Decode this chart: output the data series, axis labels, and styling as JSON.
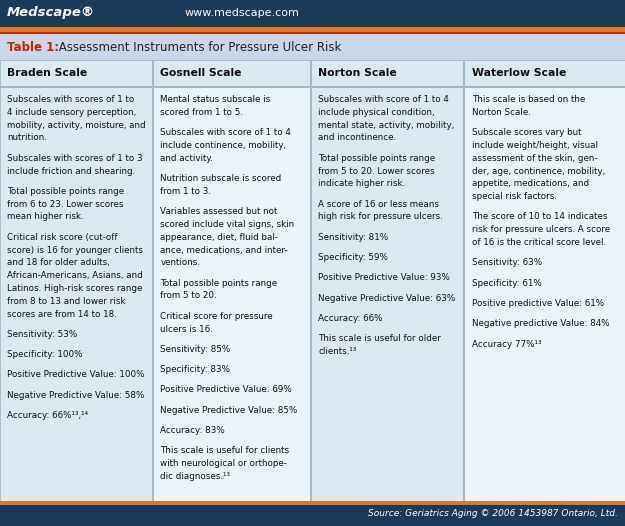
{
  "header_bg": "#1a3a5c",
  "header_orange_line": "#e07820",
  "header_text_medscape": "Medscape®",
  "header_text_url": "www.medscape.com",
  "table_title_bg": "#c8d8e8",
  "table_title_bold": "Table 1:",
  "table_title_rest": " Assessment Instruments for Pressure Ulcer Risk",
  "col_header_bg": "#dce8f0",
  "col_headers": [
    "Braden Scale",
    "Gosnell Scale",
    "Norton Scale",
    "Waterlow Scale"
  ],
  "cell_bg_even": "#dce8f0",
  "cell_bg_odd": "#eaf3f8",
  "footer_bg": "#1a3a5c",
  "footer_text": "Source: Geriatrics Aging © 2006 1453987 Ontario, Ltd.",
  "red_line": "#cc2200",
  "col1_lines": [
    "Subscales with scores of 1 to\n4 include sensory perception,\nmobility, activity, moisture, and\nnutrition.",
    "Subscales with scores of 1 to 3\ninclude friction and shearing.",
    "Total possible points range\nfrom 6 to 23. Lower scores\nmean higher risk.",
    "Critical risk score (cut-off\nscore) is 16 for younger clients\nand 18 for older adults,\nAfrican-Americans, Asians, and\nLatinos. High-risk scores range\nfrom 8 to 13 and lower risk\nscores are from 14 to 18.",
    "Sensitivity: 53%",
    "Specificity: 100%",
    "Positive Predictive Value: 100%",
    "Negative Predictive Value: 58%",
    "Accuracy: 66%¹³,¹⁴"
  ],
  "col2_lines": [
    "Mental status subscale is\nscored from 1 to 5.",
    "Subscales with score of 1 to 4\ninclude continence, mobility,\nand activity.",
    "Nutrition subscale is scored\nfrom 1 to 3.",
    "Variables assessed but not\nscored include vital signs, skin\nappearance, diet, fluid bal-\nance, medications, and inter-\nventions.",
    "Total possible points range\nfrom 5 to 20.",
    "Critical score for pressure\nulcers is 16.",
    "Sensitivity: 85%",
    "Specificity: 83%",
    "Positive Predictive Value: 69%",
    "Negative Predictive Value: 85%",
    "Accuracy: 83%",
    "This scale is useful for clients\nwith neurological or orthope-\ndic diagnoses.¹³"
  ],
  "col3_lines": [
    "Subscales with score of 1 to 4\ninclude physical condition,\nmental state, activity, mobility,\nand incontinence.",
    "Total possible points range\nfrom 5 to 20. Lower scores\nindicate higher risk.",
    "A score of 16 or less means\nhigh risk for pressure ulcers.",
    "Sensitivity: 81%",
    "Specificity: 59%",
    "Positive Predictive Value: 93%",
    "Negative Predictive Value: 63%",
    "Accuracy: 66%",
    "This scale is useful for older\nclients.¹³"
  ],
  "col4_lines": [
    "This scale is based on the\nNorton Scale.",
    "Subscale scores vary but\ninclude weight/height, visual\nassessment of the skin, gen-\nder, age, continence, mobility,\nappetite, medications, and\nspecial risk factors.",
    "The score of 10 to 14 indicates\nrisk for pressure ulcers. A score\nof 16 is the critical score level.",
    "Sensitivity: 63%",
    "Specificity: 61%",
    "Positive predictive Value: 61%",
    "Negative predictive Value: 84%",
    "Accuracy 77%¹³"
  ]
}
